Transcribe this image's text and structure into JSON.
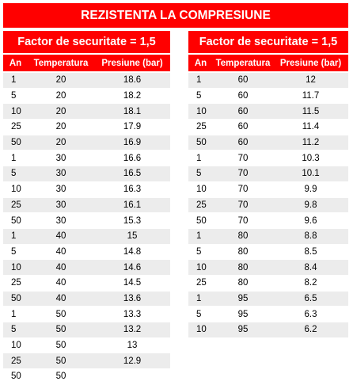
{
  "title": "REZISTENTA LA COMPRESIUNE",
  "left_table": {
    "factor_label": "Factor de securitate = 1,5",
    "headers": [
      "An",
      "Temperatura",
      "Presiune (bar)"
    ],
    "rows": [
      [
        "1",
        "20",
        "18.6"
      ],
      [
        "5",
        "20",
        "18.2"
      ],
      [
        "10",
        "20",
        "18.1"
      ],
      [
        "25",
        "20",
        "17.9"
      ],
      [
        "50",
        "20",
        "16.9"
      ],
      [
        "1",
        "30",
        "16.6"
      ],
      [
        "5",
        "30",
        "16.5"
      ],
      [
        "10",
        "30",
        "16.3"
      ],
      [
        "25",
        "30",
        "16.1"
      ],
      [
        "50",
        "30",
        "15.3"
      ],
      [
        "1",
        "40",
        "15"
      ],
      [
        "5",
        "40",
        "14.8"
      ],
      [
        "10",
        "40",
        "14.6"
      ],
      [
        "25",
        "40",
        "14.5"
      ],
      [
        "50",
        "40",
        "13.6"
      ],
      [
        "1",
        "50",
        "13.3"
      ],
      [
        "5",
        "50",
        "13.2"
      ],
      [
        "10",
        "50",
        "13"
      ],
      [
        "25",
        "50",
        "12.9"
      ],
      [
        "50",
        "50",
        ""
      ]
    ]
  },
  "right_table": {
    "factor_label": "Factor de securitate = 1,5",
    "headers": [
      "An",
      "Temperatura",
      "Presiune (bar)"
    ],
    "rows": [
      [
        "1",
        "60",
        "12"
      ],
      [
        "5",
        "60",
        "11.7"
      ],
      [
        "10",
        "60",
        "11.5"
      ],
      [
        "25",
        "60",
        "11.4"
      ],
      [
        "50",
        "60",
        "11.2"
      ],
      [
        "1",
        "70",
        "10.3"
      ],
      [
        "5",
        "70",
        "10.1"
      ],
      [
        "10",
        "70",
        "9.9"
      ],
      [
        "25",
        "70",
        "9.8"
      ],
      [
        "50",
        "70",
        "9.6"
      ],
      [
        "1",
        "80",
        "8.8"
      ],
      [
        "5",
        "80",
        "8.5"
      ],
      [
        "10",
        "80",
        "8.4"
      ],
      [
        "25",
        "80",
        "8.2"
      ],
      [
        "1",
        "95",
        "6.5"
      ],
      [
        "5",
        "95",
        "6.3"
      ],
      [
        "10",
        "95",
        "6.2"
      ]
    ]
  },
  "colors": {
    "header_red": "#ff0000",
    "header_text": "#ffffff",
    "stripe": "#ececec"
  }
}
